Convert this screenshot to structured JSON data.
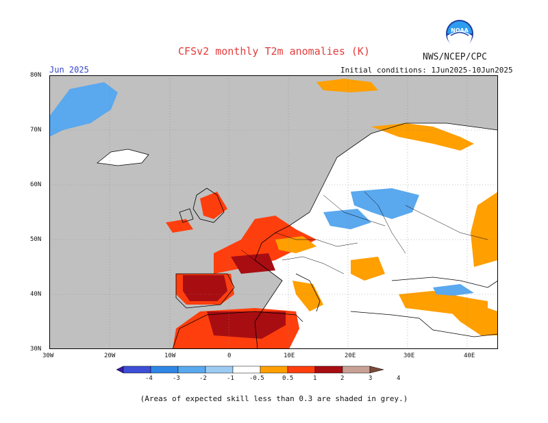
{
  "title": "CFSv2 monthly T2m anomalies (K)",
  "org": "NWS/NCEP/CPC",
  "logo_text": "NOAA",
  "month": "Jun 2025",
  "init": "Initial conditions: 1Jun2025-10Jun2025",
  "lat_labels": [
    "80N",
    "70N",
    "60N",
    "50N",
    "40N",
    "30N"
  ],
  "lon_labels": [
    "30W",
    "20W",
    "10W",
    "0",
    "10E",
    "20E",
    "30E",
    "40E"
  ],
  "colorbar": {
    "labels": [
      "-4",
      "-3",
      "-2",
      "-1",
      "-0.5",
      "0.5",
      "1",
      "2",
      "3",
      "4"
    ],
    "colors": [
      "#3a1aa8",
      "#3d4fd6",
      "#2f86e6",
      "#5aa8ee",
      "#9ccbf2",
      "#ffffff",
      "#ff9f00",
      "#ff3e0e",
      "#a80d12",
      "#c8a096",
      "#7a4a3a"
    ]
  },
  "footer": "(Areas of expected skill less than 0.3 are shaded in grey.)",
  "colors": {
    "grey": "#c0c0c0",
    "land": "#ffffff",
    "title": "#e23b3b"
  }
}
